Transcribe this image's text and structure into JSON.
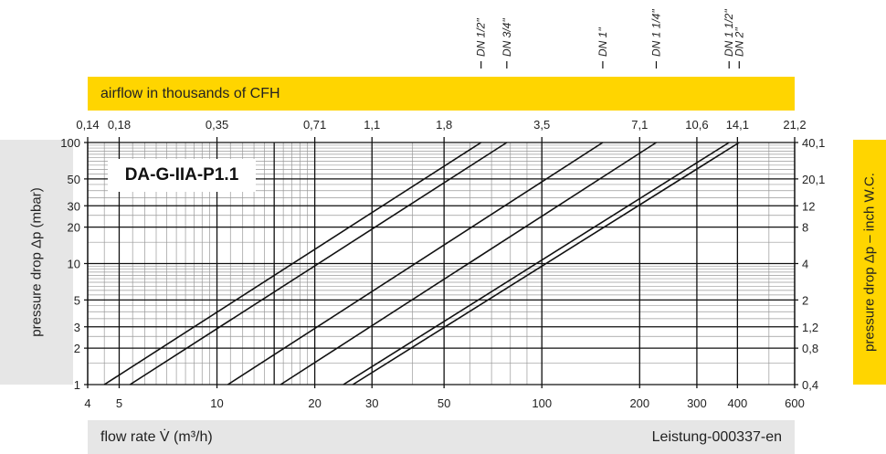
{
  "chart_data": {
    "type": "line",
    "title": "DA-G-IIA-P1.1",
    "xlabel": "flow rate V̇ (m³/h)",
    "ylabel": "pressure drop Δp (mbar)",
    "x2label": "airflow in thousands of CFH",
    "y2label": "pressure drop Δp – inch W.C.",
    "xscale": "log",
    "yscale": "log",
    "xlim": [
      4,
      600
    ],
    "ylim": [
      1,
      100
    ],
    "grid": true,
    "xticks": [
      "4",
      "5",
      "10",
      "20",
      "30",
      "50",
      "100",
      "200",
      "300",
      "400",
      "600"
    ],
    "xtick_values": [
      4,
      5,
      10,
      20,
      30,
      50,
      100,
      200,
      300,
      400,
      600
    ],
    "yticks": [
      "1",
      "2",
      "3",
      "5",
      "10",
      "20",
      "30",
      "50",
      "100"
    ],
    "ytick_values": [
      1,
      2,
      3,
      5,
      10,
      20,
      30,
      50,
      100
    ],
    "x2ticks": [
      "0,14",
      "0,18",
      "0,35",
      "0,71",
      "1,1",
      "1,8",
      "3,5",
      "7,1",
      "10,6",
      "14,1",
      "21,2"
    ],
    "y2ticks": [
      "0,4",
      "0,8",
      "1,2",
      "2",
      "4",
      "8",
      "12",
      "20,1",
      "40,1"
    ],
    "series": [
      {
        "name": "DN 1/2\"",
        "x": [
          4.5,
          65
        ],
        "y": [
          1,
          100
        ]
      },
      {
        "name": "DN 3/4\"",
        "x": [
          5.4,
          78
        ],
        "y": [
          1,
          100
        ]
      },
      {
        "name": "DN 1\"",
        "x": [
          10.8,
          154
        ],
        "y": [
          1,
          100
        ]
      },
      {
        "name": "DN  1 1/4\"",
        "x": [
          15.7,
          225
        ],
        "y": [
          1,
          100
        ]
      },
      {
        "name": "DN 1 1/2\"",
        "x": [
          24.5,
          377
        ],
        "y": [
          1,
          100
        ]
      },
      {
        "name": "DN  2\"",
        "x": [
          26.2,
          405
        ],
        "y": [
          1,
          100
        ]
      }
    ]
  },
  "footer": {
    "code": "Leistung-000337-en"
  },
  "colors": {
    "yellow": "#ffd500",
    "gray": "#e6e6e6"
  }
}
